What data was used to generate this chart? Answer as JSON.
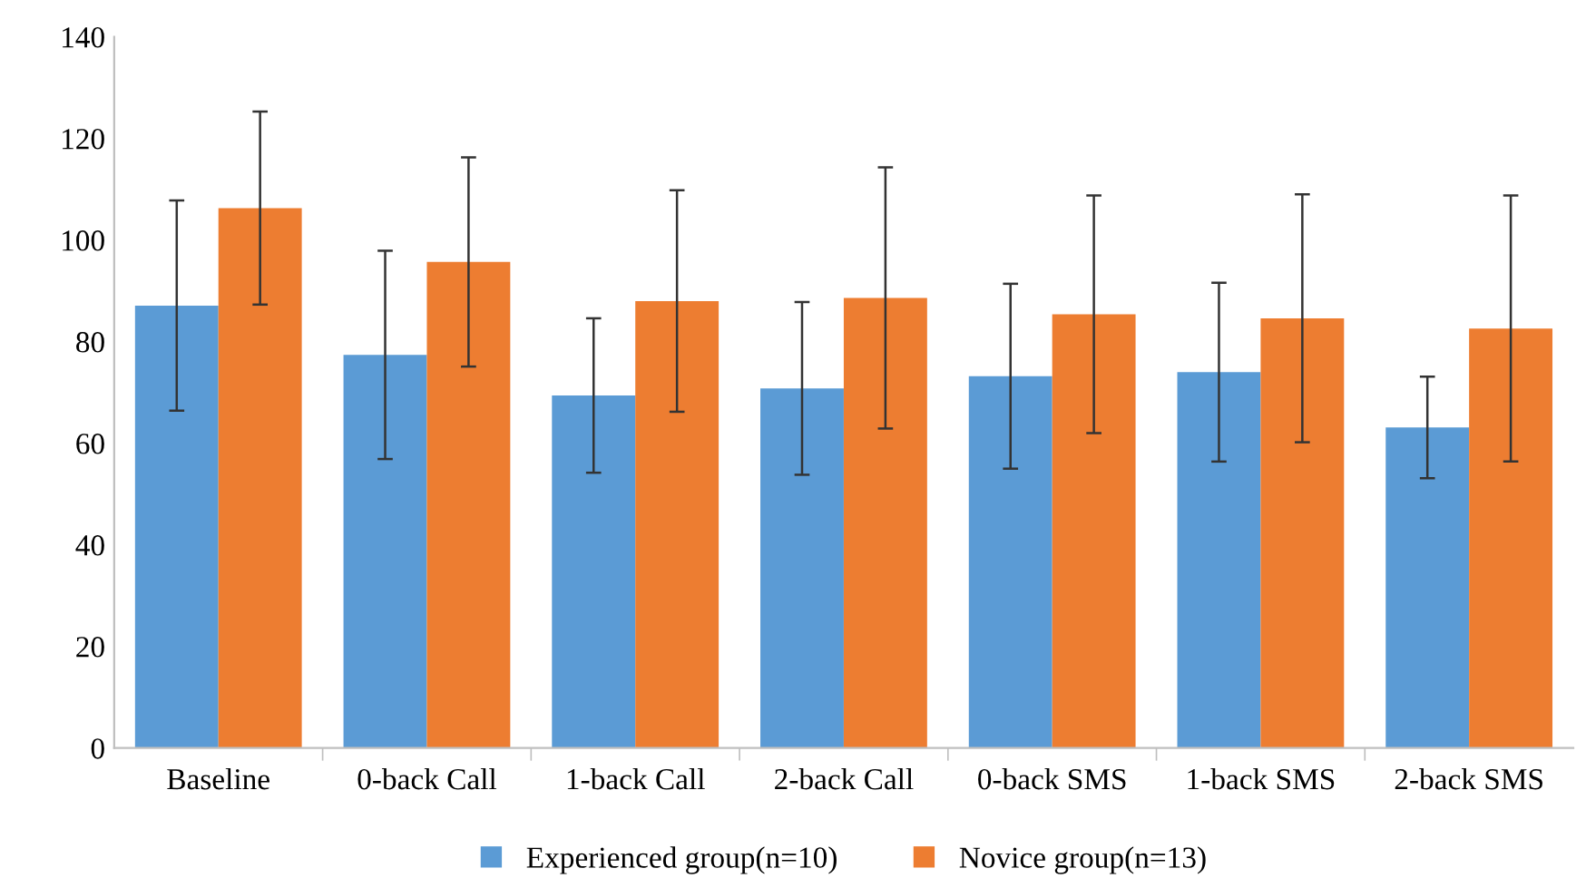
{
  "chart_data": {
    "type": "bar",
    "categories": [
      "Baseline",
      "0-back Call",
      "1-back Call",
      "2-back Call",
      "0-back SMS",
      "1-back SMS",
      "2-back SMS"
    ],
    "series": [
      {
        "name": "Experienced group(n=10)",
        "color": "#5b9bd5",
        "values": [
          87.1,
          77.4,
          69.4,
          70.8,
          73.2,
          74.0,
          63.1
        ],
        "errors": [
          20.7,
          20.5,
          15.2,
          17.0,
          18.2,
          17.6,
          10.0
        ]
      },
      {
        "name": "Novice group(n=13)",
        "color": "#ed7d31",
        "values": [
          106.3,
          95.7,
          88.0,
          88.6,
          85.4,
          84.6,
          82.6
        ],
        "errors": [
          19.0,
          20.6,
          21.8,
          25.7,
          23.4,
          24.4,
          26.2
        ]
      }
    ],
    "ylim": [
      0,
      140
    ],
    "yticks": [
      0,
      20,
      40,
      60,
      80,
      100,
      120,
      140
    ],
    "grid": false,
    "legend": "bottom"
  }
}
